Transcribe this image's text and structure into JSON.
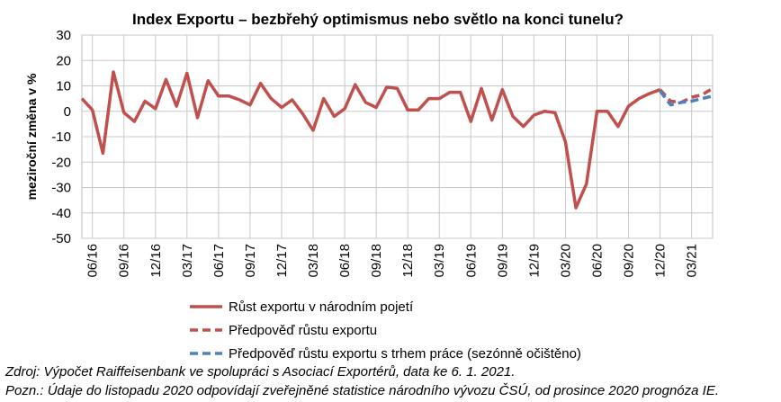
{
  "chart_data": {
    "type": "line",
    "title": "Index Exportu – bezbřehý optimismus nebo světlo na konci tunelu?",
    "ylabel": "meziroční změna v %",
    "xlabel": "",
    "ylim": [
      -50,
      30
    ],
    "y_ticks": [
      "30",
      "20",
      "10",
      "0",
      "-10",
      "-20",
      "-30",
      "-40",
      "-50"
    ],
    "x_tick_labels": [
      "06/16",
      "09/16",
      "12/16",
      "03/17",
      "06/17",
      "09/17",
      "12/17",
      "03/18",
      "06/18",
      "09/18",
      "12/18",
      "03/19",
      "06/19",
      "09/19",
      "12/19",
      "03/20",
      "06/20",
      "09/20",
      "12/20",
      "03/21"
    ],
    "grid": true,
    "legend_position": "bottom",
    "series": [
      {
        "name": "Růst exportu v národním pojetí",
        "color": "#c0504d",
        "style": "solid",
        "values": [
          5,
          0.5,
          -16.5,
          15.5,
          -0.5,
          -4,
          4,
          1,
          12.5,
          2,
          15,
          -2.5,
          12,
          6,
          6,
          4.5,
          2.5,
          11,
          5,
          1.5,
          4.5,
          -1,
          -7.5,
          5,
          -2,
          1,
          10.5,
          3.5,
          1.5,
          9.5,
          9,
          0.5,
          0.5,
          5,
          5,
          7.5,
          7.5,
          -4,
          9,
          -3.5,
          8.5,
          -2,
          -6,
          -1.5,
          0,
          -0.5,
          -12,
          -38,
          -28.5,
          0,
          0,
          -6,
          2,
          5,
          7,
          8.5
        ]
      },
      {
        "name": "Předpověď růstu exportu",
        "color": "#c0504d",
        "style": "dashed",
        "values": [
          null,
          null,
          null,
          null,
          null,
          null,
          null,
          null,
          null,
          null,
          null,
          null,
          null,
          null,
          null,
          null,
          null,
          null,
          null,
          null,
          null,
          null,
          null,
          null,
          null,
          null,
          null,
          null,
          null,
          null,
          null,
          null,
          null,
          null,
          null,
          null,
          null,
          null,
          null,
          null,
          null,
          null,
          null,
          null,
          null,
          null,
          null,
          null,
          null,
          null,
          null,
          null,
          null,
          null,
          null,
          8.5,
          4,
          3.5,
          5.5,
          6.5,
          9
        ]
      },
      {
        "name": "Předpověď růstu exportu s trhem práce (sezónně očištěno)",
        "color": "#4f81bd",
        "style": "dashed",
        "values": [
          null,
          null,
          null,
          null,
          null,
          null,
          null,
          null,
          null,
          null,
          null,
          null,
          null,
          null,
          null,
          null,
          null,
          null,
          null,
          null,
          null,
          null,
          null,
          null,
          null,
          null,
          null,
          null,
          null,
          null,
          null,
          null,
          null,
          null,
          null,
          null,
          null,
          null,
          null,
          null,
          null,
          null,
          null,
          null,
          null,
          null,
          null,
          null,
          null,
          null,
          null,
          null,
          null,
          null,
          null,
          8,
          2.5,
          3.5,
          4,
          5,
          6
        ]
      }
    ]
  },
  "notes": {
    "source": "Zdroj: Výpočet Raiffeisenbank ve spolupráci s Asociací Exportérů, data ke 6. 1. 2021.",
    "footnote": "Pozn.: Údaje do listopadu 2020 odpovídají zveřejněné statistice národního vývozu ČSÚ, od prosince 2020 prognóza IE."
  }
}
